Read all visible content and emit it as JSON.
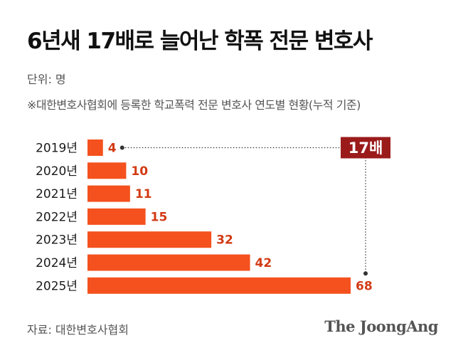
{
  "title": "6년새 17배로 늘어난 학폭 전문 변호사",
  "unit": "단위: 명",
  "note": "※대한변호사협회에 등록한 학교폭력 전문 변호사 연도별 현황(누적 기준)",
  "source": "자료: 대한변호사협회",
  "brand": "The JoongAng",
  "colors": {
    "bar": "#f4511e",
    "value_text": "#d23a14",
    "badge_bg": "#9b1b1b",
    "badge_text": "#ffffff",
    "connector": "#333333"
  },
  "chart_data": {
    "type": "bar",
    "orientation": "horizontal",
    "categories": [
      "2019년",
      "2020년",
      "2021년",
      "2022년",
      "2023년",
      "2024년",
      "2025년"
    ],
    "values": [
      4,
      10,
      11,
      15,
      32,
      42,
      68
    ],
    "annotation": {
      "label": "17배",
      "from": "2019년",
      "to": "2025년"
    },
    "xlim": [
      0,
      68
    ],
    "grid": false,
    "legend": "none"
  }
}
